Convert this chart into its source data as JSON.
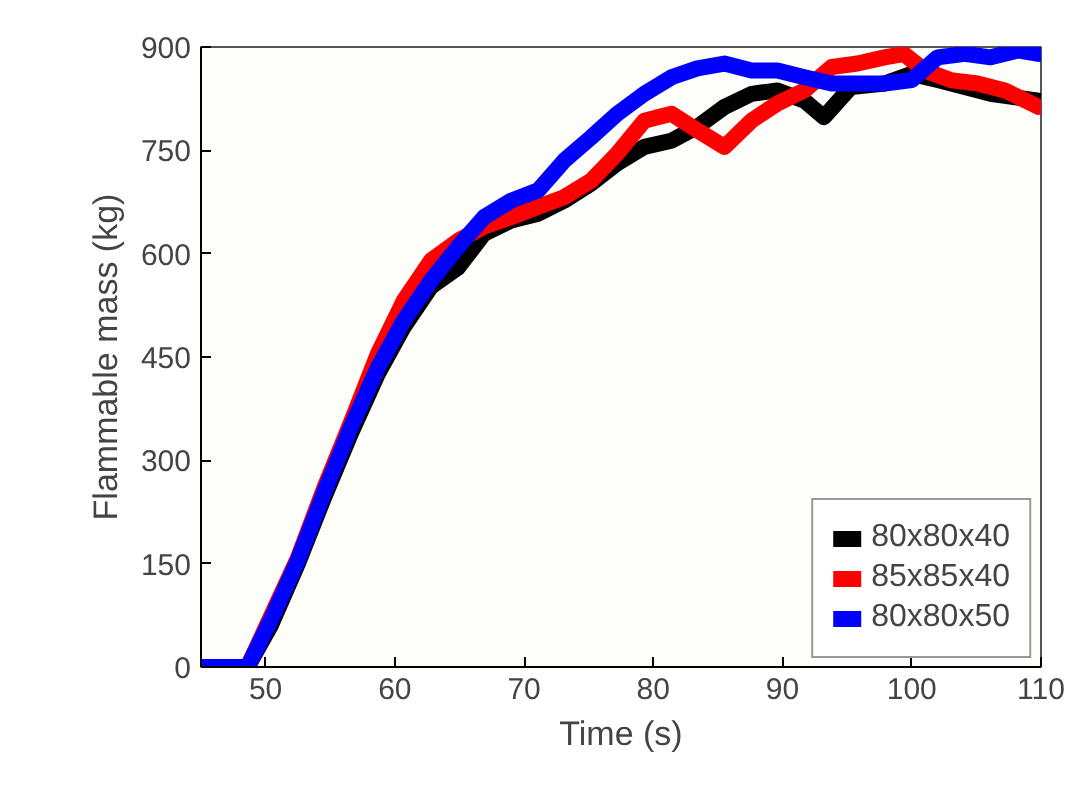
{
  "chart_data": {
    "type": "line",
    "xlabel": "Time (s)",
    "ylabel": "Flammable mass (kg)",
    "xlim": [
      45,
      110
    ],
    "xticks": [
      50,
      60,
      70,
      80,
      90,
      100,
      110
    ],
    "ylim": [
      0,
      900
    ],
    "yticks": [
      0,
      150,
      300,
      450,
      600,
      750,
      900
    ],
    "legend": "bottom right",
    "grid": false,
    "line_style": "solid",
    "series": [
      {
        "name": "80x80x40",
        "color": "#000000",
        "x": [
          45,
          48.6,
          50.4,
          52.5,
          54.5,
          56.6,
          58.7,
          60.7,
          62.8,
          64.9,
          66.9,
          69,
          71.1,
          73.1,
          75.2,
          77.2,
          79.3,
          81.4,
          83.4,
          85.5,
          87.6,
          89.6,
          91.7,
          93.2,
          95.3,
          97.9,
          100,
          102,
          104.1,
          106.1,
          109.8
        ],
        "values": [
          0,
          0,
          60,
          150,
          245,
          339,
          426,
          494,
          552,
          580,
          629,
          648,
          658,
          677,
          702,
          731,
          755,
          764,
          784,
          813,
          832,
          837,
          822,
          798,
          842,
          847,
          861,
          852,
          842,
          832,
          822
        ]
      },
      {
        "name": "85x85x40",
        "color": "#ff0000",
        "x": [
          45,
          48.6,
          52.5,
          54.5,
          56.6,
          58.7,
          60.7,
          62.8,
          64.9,
          66.9,
          69,
          71.1,
          73.1,
          75.2,
          77.2,
          79.3,
          81.4,
          83.4,
          85.5,
          87.6,
          89.6,
          91.7,
          93.8,
          95.8,
          97.9,
          99.4,
          101,
          103,
          105.1,
          107.2,
          109.8
        ],
        "values": [
          0,
          0,
          158,
          258,
          355,
          455,
          532,
          590,
          619,
          639,
          653,
          668,
          682,
          706,
          745,
          793,
          803,
          779,
          755,
          793,
          818,
          837,
          871,
          876,
          885,
          890,
          866,
          852,
          847,
          837,
          813
        ]
      },
      {
        "name": "80x80x50",
        "color": "#0000ff",
        "x": [
          45,
          48.6,
          50.4,
          52.5,
          54.5,
          56.6,
          58.7,
          60.7,
          62.8,
          64.9,
          66.9,
          69,
          71.1,
          73.1,
          75.2,
          77.2,
          79.3,
          81.4,
          83.4,
          85.5,
          87.6,
          89.6,
          91.7,
          93.8,
          95.8,
          97.9,
          100,
          102,
          104.1,
          106.1,
          108.2,
          109.8
        ],
        "values": [
          0,
          0,
          68,
          155,
          252,
          348,
          435,
          503,
          561,
          610,
          653,
          677,
          692,
          735,
          769,
          803,
          832,
          856,
          869,
          876,
          866,
          866,
          856,
          847,
          847,
          847,
          852,
          885,
          890,
          885,
          895,
          890
        ]
      }
    ]
  }
}
